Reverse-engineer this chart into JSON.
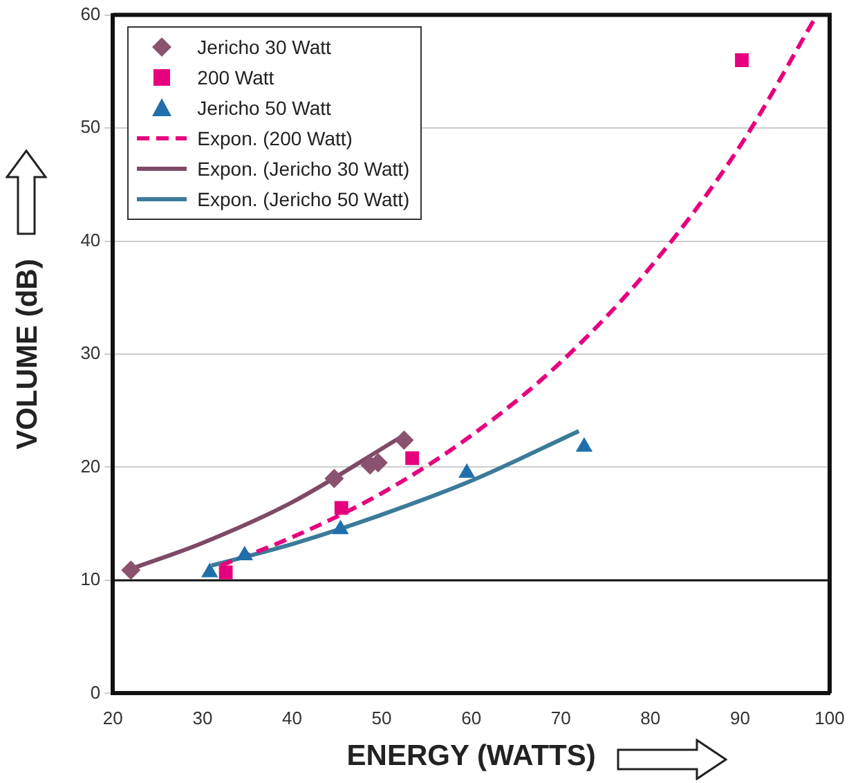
{
  "chart_data": {
    "type": "scatter",
    "xlabel": "ENERGY (WATTS)",
    "ylabel": "VOLUME (dB)",
    "xlim": [
      20,
      100
    ],
    "ylim": [
      0,
      60
    ],
    "xticks": [
      20,
      30,
      40,
      50,
      60,
      70,
      80,
      90,
      100
    ],
    "yticks": [
      0,
      10,
      20,
      30,
      40,
      50,
      60
    ],
    "grid": "y",
    "legend": "top left",
    "ref_lines": [
      {
        "axis": "y",
        "value": 10,
        "color": "#111111"
      }
    ],
    "series": [
      {
        "name": "Jericho 30 Watt",
        "marker": "diamond",
        "color": "#8b5270",
        "x": [
          22,
          44.7,
          48.7,
          49.6,
          52.5
        ],
        "values": [
          10.9,
          19,
          20.2,
          20.4,
          22.4
        ]
      },
      {
        "name": "200 Watt",
        "marker": "square",
        "color": "#e6007e",
        "x": [
          32.6,
          45.5,
          53.4,
          90.2
        ],
        "values": [
          10.7,
          16.4,
          20.8,
          56
        ]
      },
      {
        "name": "Jericho 50 Watt",
        "marker": "triangle",
        "color": "#1f70aa",
        "x": [
          30.8,
          34.7,
          45.4,
          59.5,
          72.6
        ],
        "values": [
          10.7,
          12.2,
          14.5,
          19.5,
          21.8
        ]
      },
      {
        "name": "Expon. (200 Watt)",
        "type": "line",
        "marker": "none",
        "line_style": "dashed",
        "color": "#e6007e",
        "x": [
          32,
          40,
          50,
          60,
          70,
          80,
          90,
          98.5
        ],
        "values": [
          11.3,
          13.8,
          17.7,
          22.8,
          29.3,
          37.7,
          48.4,
          59.9
        ]
      },
      {
        "name": "Expon. (Jericho 30 Watt)",
        "type": "line",
        "marker": "none",
        "line_style": "solid",
        "color": "#7e4a66",
        "x": [
          22,
          30,
          40,
          52
        ],
        "values": [
          11,
          13.3,
          16.9,
          22.6
        ]
      },
      {
        "name": "Expon. (Jericho 50 Watt)",
        "type": "line",
        "marker": "none",
        "line_style": "solid",
        "color": "#3a7b98",
        "x": [
          31,
          40,
          50,
          60,
          72
        ],
        "values": [
          11.3,
          13.2,
          15.8,
          18.8,
          23.2
        ]
      }
    ]
  }
}
